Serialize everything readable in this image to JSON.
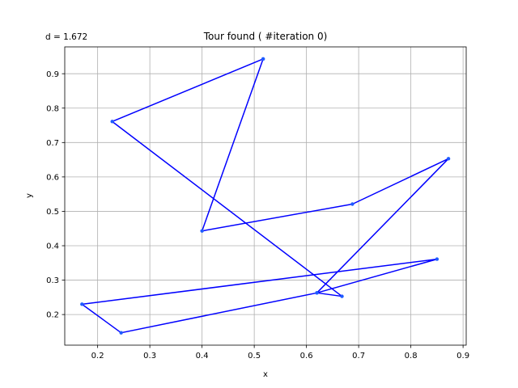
{
  "chart_data": {
    "type": "line",
    "title": "Tour found ( #iteration 0)",
    "left_title": "d = 1.672",
    "xlabel": "x",
    "ylabel": "y",
    "xlim": [
      0.137,
      0.906
    ],
    "ylim": [
      0.111,
      0.978
    ],
    "xticks": [
      0.2,
      0.3,
      0.4,
      0.5,
      0.6,
      0.7,
      0.8,
      0.9
    ],
    "xtick_labels": [
      "0.2",
      "0.3",
      "0.4",
      "0.5",
      "0.6",
      "0.7",
      "0.8",
      "0.9"
    ],
    "yticks": [
      0.2,
      0.3,
      0.4,
      0.5,
      0.6,
      0.7,
      0.8,
      0.9
    ],
    "ytick_labels": [
      "0.2",
      "0.3",
      "0.4",
      "0.5",
      "0.6",
      "0.7",
      "0.8",
      "0.9"
    ],
    "grid": true,
    "series": [
      {
        "color": "#0000ff",
        "marker_color": "#1f5cff",
        "x": [
          0.517,
          0.228,
          0.668,
          0.62,
          0.85,
          0.17,
          0.245,
          0.62,
          0.872,
          0.688,
          0.4,
          0.517
        ],
        "y": [
          0.943,
          0.761,
          0.253,
          0.263,
          0.361,
          0.23,
          0.147,
          0.263,
          0.653,
          0.521,
          0.443,
          0.943
        ]
      }
    ]
  }
}
